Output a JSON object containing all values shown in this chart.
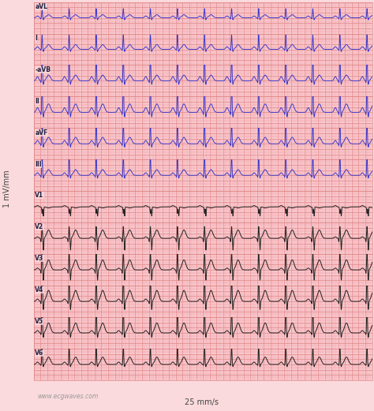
{
  "background_color": "#FADADD",
  "grid_minor_color": "#F4A0A8",
  "grid_major_color": "#E08888",
  "ecg_color_limb": "#3333CC",
  "ecg_color_precordial": "#222222",
  "leads": [
    "aVL",
    "I",
    "-aVB",
    "II",
    "aVF",
    "III",
    "V1",
    "V2",
    "V3",
    "V4",
    "V5",
    "V6"
  ],
  "ylabel": "1 mV/mm",
  "xlabel": "25 mm/s",
  "watermark": "www.ecgwaves.com",
  "duration": 10.0,
  "sample_rate": 500,
  "heart_rate": 75,
  "lead_params": {
    "aVL": {
      "p_amp": 0.07,
      "qrs_amp": 0.35,
      "t_amp": 0.12,
      "q_depth": -0.04,
      "s_depth": -0.08
    },
    "I": {
      "p_amp": 0.1,
      "qrs_amp": 0.55,
      "t_amp": 0.18,
      "q_depth": -0.04,
      "s_depth": -0.09
    },
    "-aVB": {
      "p_amp": 0.16,
      "qrs_amp": 1.1,
      "t_amp": 0.22,
      "q_depth": -0.07,
      "s_depth": -0.14
    },
    "II": {
      "p_amp": 0.18,
      "qrs_amp": 1.3,
      "t_amp": 0.32,
      "q_depth": -0.09,
      "s_depth": -0.18
    },
    "aVF": {
      "p_amp": 0.13,
      "qrs_amp": 0.9,
      "t_amp": 0.25,
      "q_depth": -0.07,
      "s_depth": -0.13
    },
    "III": {
      "p_amp": 0.1,
      "qrs_amp": 0.8,
      "t_amp": 0.22,
      "q_depth": -0.07,
      "s_depth": -0.11
    },
    "V1": {
      "p_amp": 0.05,
      "qrs_amp": -0.25,
      "t_amp": -0.04,
      "q_depth": -0.02,
      "s_depth": -0.35
    },
    "V2": {
      "p_amp": 0.06,
      "qrs_amp": 0.45,
      "t_amp": 0.32,
      "q_depth": -0.13,
      "s_depth": -0.45
    },
    "V3": {
      "p_amp": 0.07,
      "qrs_amp": 0.75,
      "t_amp": 0.38,
      "q_depth": -0.13,
      "s_depth": -0.4
    },
    "V4": {
      "p_amp": 0.09,
      "qrs_amp": 1.1,
      "t_amp": 0.42,
      "q_depth": -0.09,
      "s_depth": -0.32
    },
    "V5": {
      "p_amp": 0.09,
      "qrs_amp": 1.2,
      "t_amp": 0.38,
      "q_depth": -0.07,
      "s_depth": -0.18
    },
    "V6": {
      "p_amp": 0.09,
      "qrs_amp": 0.75,
      "t_amp": 0.28,
      "q_depth": -0.04,
      "s_depth": -0.09
    }
  }
}
